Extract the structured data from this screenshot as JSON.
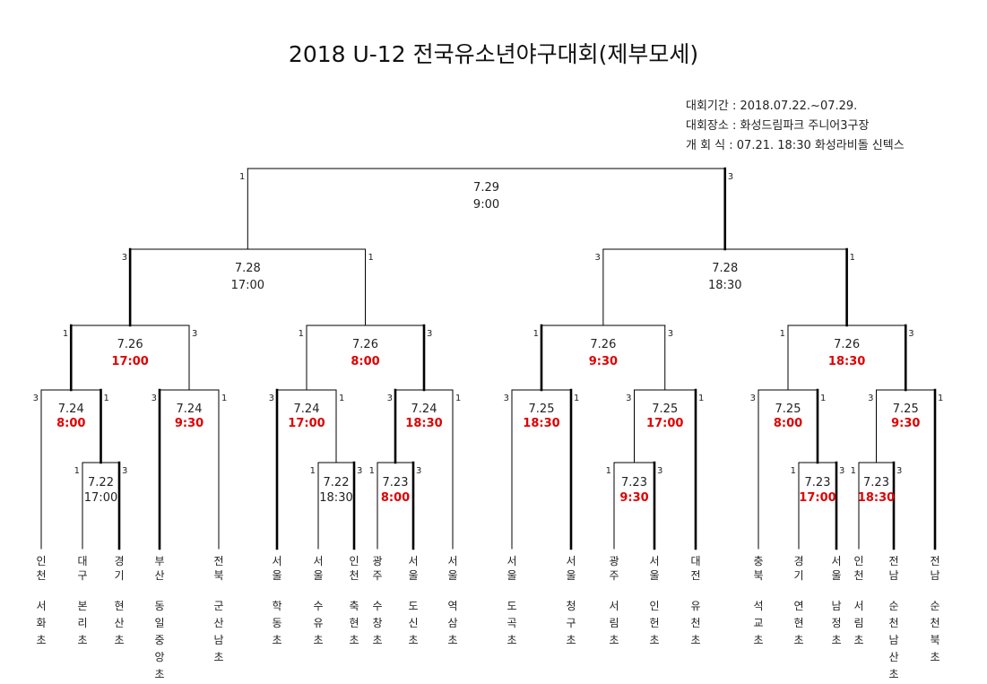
{
  "title": "2018 U-12 전국유소년야구대회(제부모세)",
  "info": {
    "period": "대회기간 : 2018.07.22.~07.29.",
    "venue": "대회장소 :  화성드림파크 주니어3구장",
    "opening": "개 회 식 : 07.21. 18:30 화성라비돌 신텍스"
  },
  "teams": [
    {
      "region": "인천",
      "name": "서화초"
    },
    {
      "region": "대구",
      "name": "본리초"
    },
    {
      "region": "경기",
      "name": "현산초"
    },
    {
      "region": "부산",
      "name": "동일중앙초"
    },
    {
      "region": "전북",
      "name": "군산남초"
    },
    {
      "region": "서울",
      "name": "학동초"
    },
    {
      "region": "서울",
      "name": "수유초"
    },
    {
      "region": "인천",
      "name": "축현초"
    },
    {
      "region": "광주",
      "name": "수창초"
    },
    {
      "region": "서울",
      "name": "도신초"
    },
    {
      "region": "서울",
      "name": "역삼초"
    },
    {
      "region": "서울",
      "name": "도곡초"
    },
    {
      "region": "서울",
      "name": "청구초"
    },
    {
      "region": "광주",
      "name": "서림초"
    },
    {
      "region": "서울",
      "name": "인헌초"
    },
    {
      "region": "대전",
      "name": "유천초"
    },
    {
      "region": "충북",
      "name": "석교초"
    },
    {
      "region": "경기",
      "name": "연현초"
    },
    {
      "region": "서울",
      "name": "남정초"
    },
    {
      "region": "인천",
      "name": "서림초"
    },
    {
      "region": "전남",
      "name": "순천남산초"
    },
    {
      "region": "전남",
      "name": "순천북초"
    }
  ],
  "matches": [
    {
      "date": "7.22",
      "time": "17:00",
      "scores": [
        "1",
        "3"
      ],
      "time_color": "#222222"
    },
    {
      "date": "7.22",
      "time": "18:30",
      "scores": [
        "1",
        "3"
      ],
      "time_color": "#222222"
    },
    {
      "date": "7.23",
      "time": "8:00",
      "scores": [
        "1",
        "3"
      ],
      "time_color": "#e00000"
    },
    {
      "date": "7.23",
      "time": "9:30",
      "scores": [
        "1",
        "3"
      ],
      "time_color": "#e00000"
    },
    {
      "date": "7.23",
      "time": "17:00",
      "scores": [
        "1",
        "3"
      ],
      "time_color": "#e00000"
    },
    {
      "date": "7.23",
      "time": "18:30",
      "scores": [
        "1",
        "3"
      ],
      "time_color": "#e00000"
    },
    {
      "date": "7.24",
      "time": "8:00",
      "scores": [
        "3",
        "1"
      ],
      "time_color": "#e00000"
    },
    {
      "date": "7.24",
      "time": "9:30",
      "scores": [
        "3",
        "1"
      ],
      "time_color": "#e00000"
    },
    {
      "date": "7.24",
      "time": "17:00",
      "scores": [
        "3",
        "1"
      ],
      "time_color": "#e00000"
    },
    {
      "date": "7.24",
      "time": "18:30",
      "scores": [
        "3",
        "1"
      ],
      "time_color": "#e00000"
    },
    {
      "date": "7.25",
      "time": "18:30",
      "scores": [
        "3",
        "1"
      ],
      "time_color": "#e00000"
    },
    {
      "date": "7.25",
      "time": "17:00",
      "scores": [
        "3",
        "1"
      ],
      "time_color": "#e00000"
    },
    {
      "date": "7.25",
      "time": "8:00",
      "scores": [
        "3",
        "1"
      ],
      "time_color": "#e00000"
    },
    {
      "date": "7.25",
      "time": "9:30",
      "scores": [
        "3",
        "1"
      ],
      "time_color": "#e00000"
    },
    {
      "date": "7.26",
      "time": "17:00",
      "scores": [
        "1",
        "3"
      ],
      "time_color": "#e00000"
    },
    {
      "date": "7.26",
      "time": "8:00",
      "scores": [
        "1",
        "3"
      ],
      "time_color": "#e00000"
    },
    {
      "date": "7.26",
      "time": "9:30",
      "scores": [
        "1",
        "3"
      ],
      "time_color": "#e00000"
    },
    {
      "date": "7.26",
      "time": "18:30",
      "scores": [
        "1",
        "3"
      ],
      "time_color": "#e00000"
    },
    {
      "date": "7.28",
      "time": "17:00",
      "scores": [
        "3",
        "1"
      ],
      "time_color": "#222222"
    },
    {
      "date": "7.28",
      "time": "18:30",
      "scores": [
        "3",
        "1"
      ],
      "time_color": "#222222"
    },
    {
      "date": "7.29",
      "time": "9:00",
      "scores": [
        "1",
        "3"
      ],
      "time_color": "#222222"
    }
  ]
}
